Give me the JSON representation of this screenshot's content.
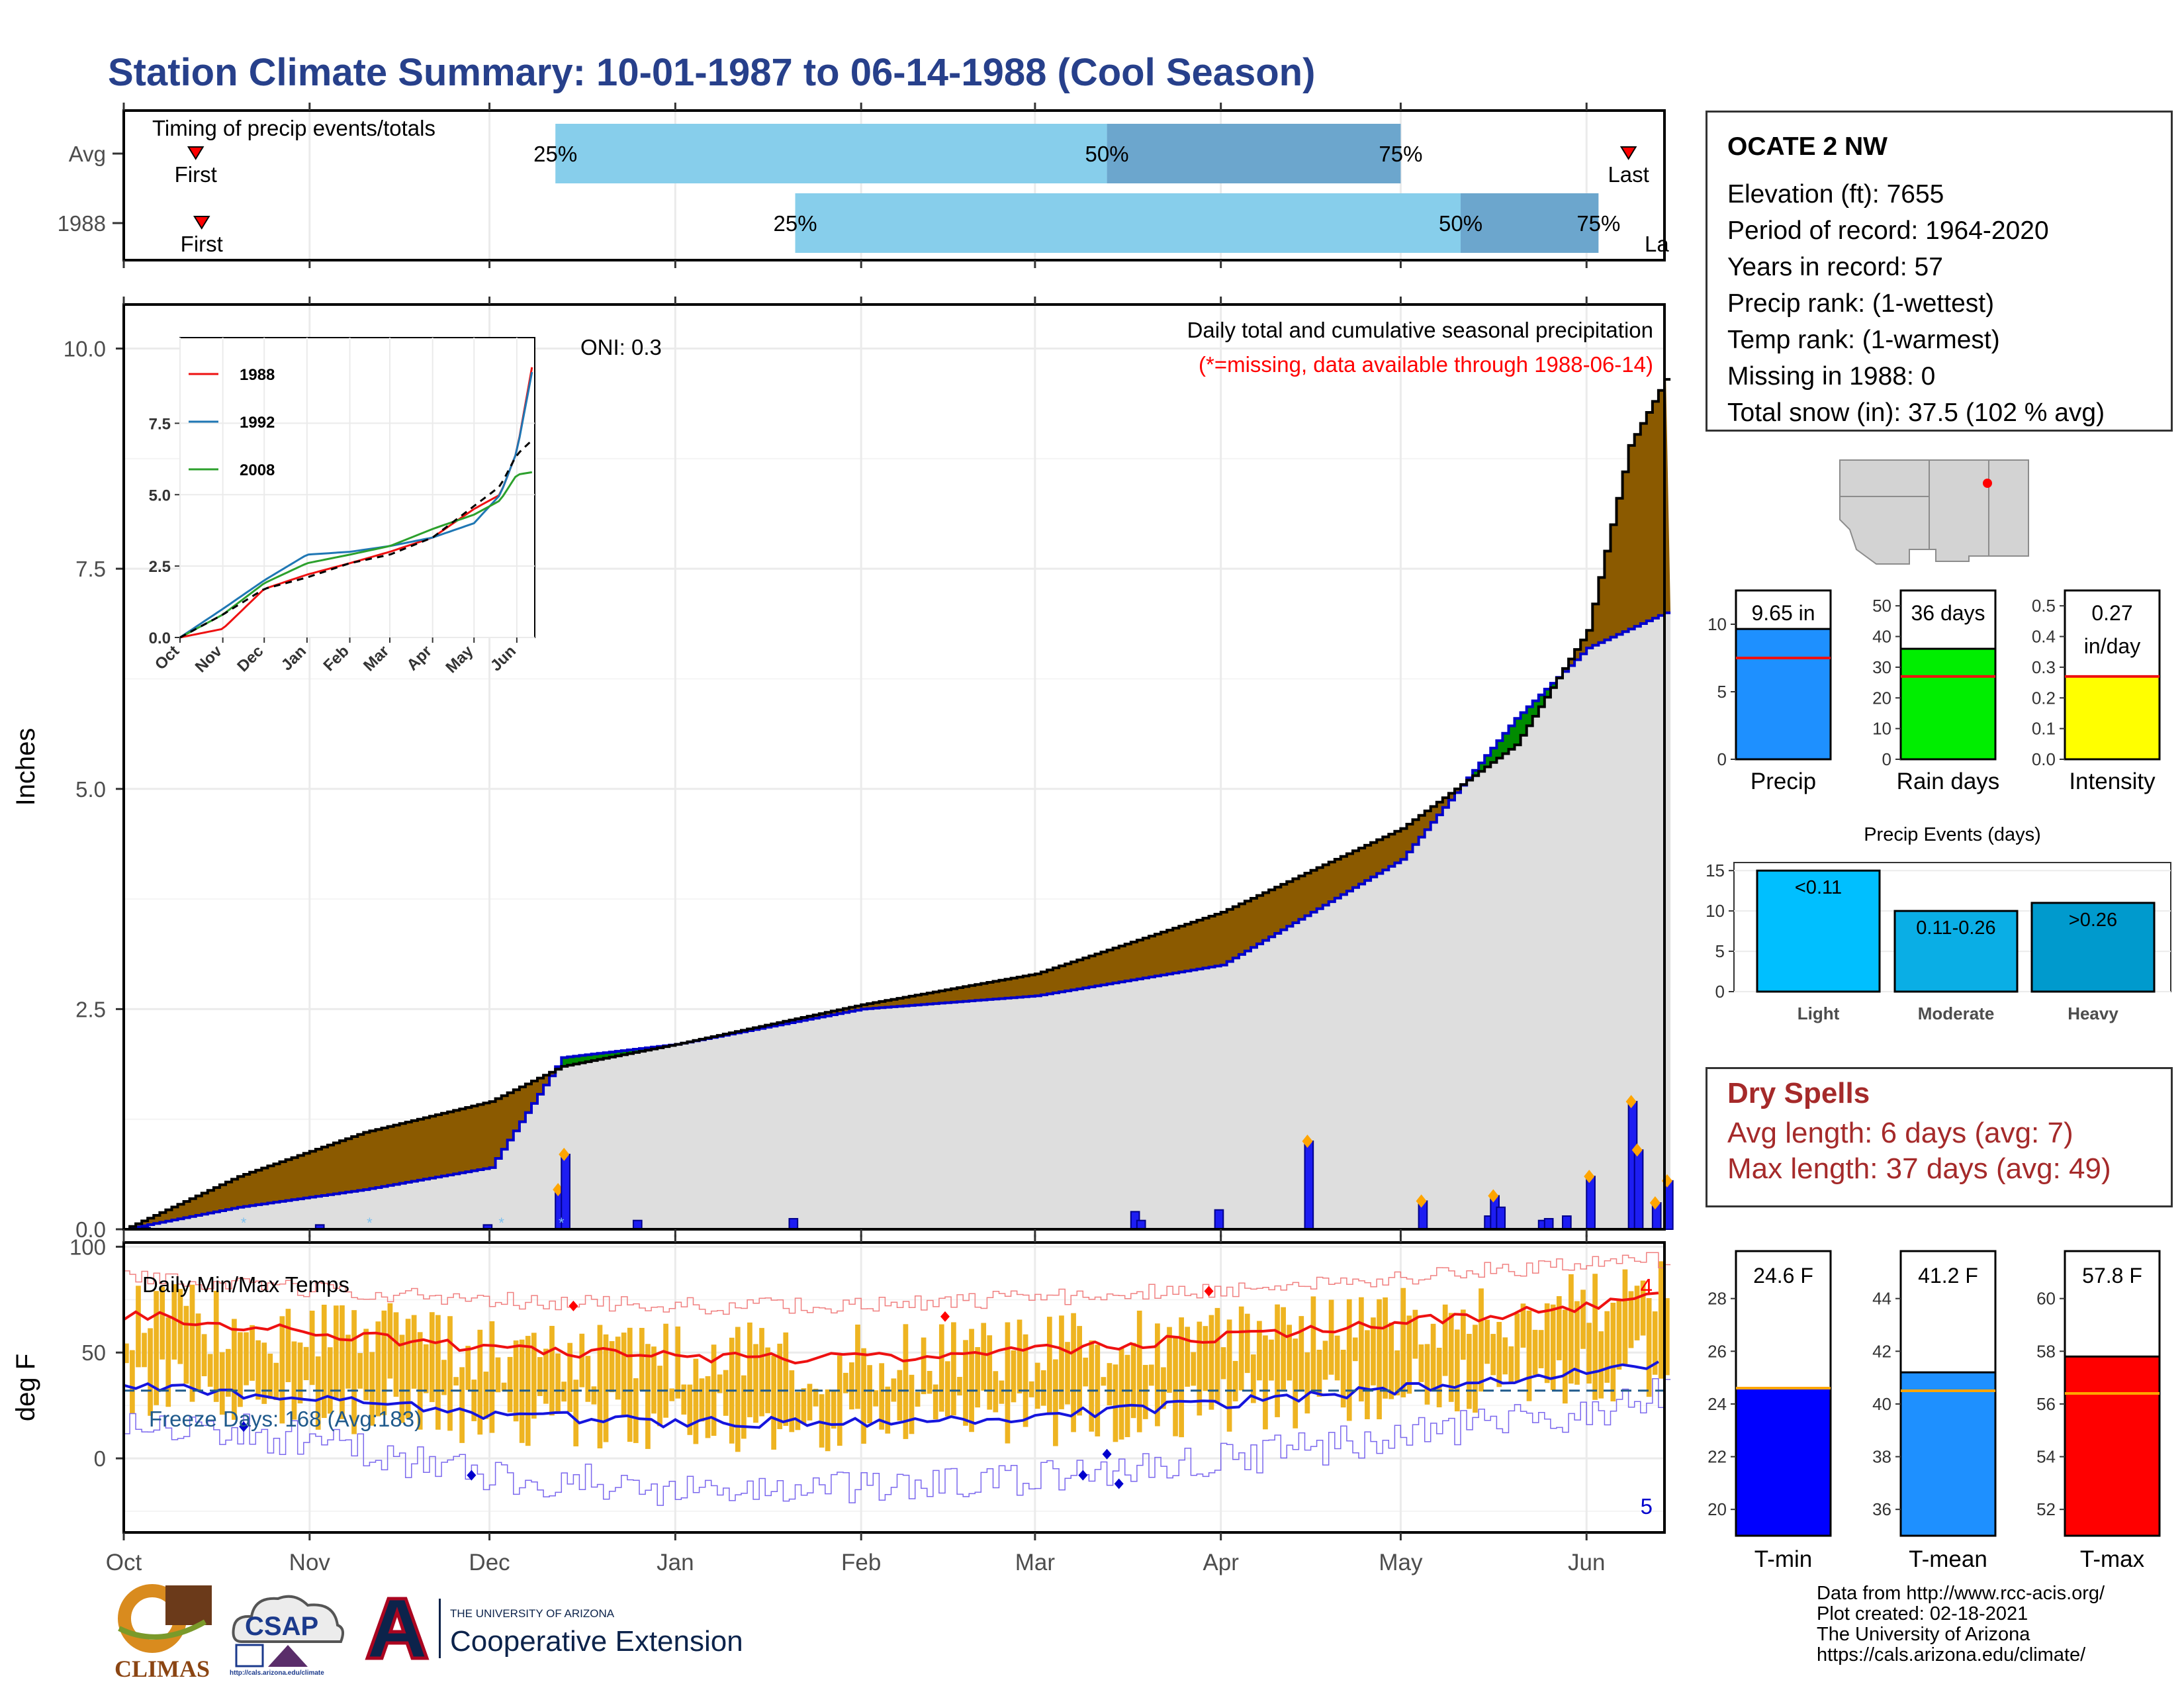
{
  "page_title": "Station Climate Summary: 10-01-1987 to 06-14-1988 (Cool Season)",
  "colors": {
    "title": "#27408b",
    "brown_surplus": "#8b5a00",
    "green_deficit": "#008b00",
    "avg_fill": "#dedede",
    "daily_bar": "#1d1df2",
    "tmax_line": "#ee1111",
    "tmin_line": "#1515dd",
    "temp_bars": "#eeb421",
    "dry_spell_text": "#a52a2a",
    "timing_light": "#87ceeb",
    "timing_dark": "#6ca6cd"
  },
  "timing": {
    "label": "Timing of precip events/totals",
    "rows": [
      {
        "name": "Avg",
        "first_marker": "First",
        "last_marker": "Last",
        "p25": "25%",
        "p50": "50%",
        "p75": "75%",
        "first_date": "1987-10-13",
        "last_date": "1988-06-08",
        "p25_date": "1987-12-12",
        "p50_date": "1988-03-13",
        "p75_date": "1988-05-01"
      },
      {
        "name": "1988",
        "first_marker": "First",
        "last_marker": "La",
        "p25": "25%",
        "p50": "50%",
        "p75": "75%",
        "first_date": "1987-10-14",
        "p25_date": "1988-01-21",
        "p50_date": "1988-05-11",
        "p75_date": "1988-06-03"
      }
    ]
  },
  "precip_panel": {
    "ylabel": "Inches",
    "yticks": [
      "0.0",
      "2.5",
      "5.0",
      "7.5",
      "10.0"
    ],
    "oni": "ONI: 0.3",
    "caption1": "Daily total and cumulative seasonal precipitation",
    "caption2": "(*=missing, data available through 1988-06-14)"
  },
  "inset": {
    "legend": [
      "1988",
      "1992",
      "2008"
    ],
    "yticks": [
      "0.0",
      "2.5",
      "5.0",
      "7.5"
    ],
    "months": [
      "Oct",
      "Nov",
      "Dec",
      "Jan",
      "Feb",
      "Mar",
      "Apr",
      "May",
      "Jun"
    ]
  },
  "temp_panel": {
    "ylabel": "deg F",
    "yticks": [
      "0",
      "50",
      "100"
    ],
    "title": "Daily Min/Max Temps",
    "freeze_text": "Freeze Days: 168 (Avg:183)",
    "count_max": "4",
    "count_min": "5"
  },
  "months": [
    "Oct",
    "Nov",
    "Dec",
    "Jan",
    "Feb",
    "Mar",
    "Apr",
    "May",
    "Jun"
  ],
  "station": {
    "name": "OCATE 2 NW",
    "lines": [
      "Elevation (ft): 7655",
      "Period of record: 1964-2020",
      "Years in record: 57",
      "Precip rank:  (1-wettest)",
      "Temp rank:  (1-warmest)",
      "Missing in 1988: 0",
      "Total snow (in): 37.5 (102 % avg)"
    ]
  },
  "mini_precip": [
    {
      "label": "9.65 in",
      "xlabel": "Precip",
      "value": 9.65,
      "avg": 7.5,
      "ymax": 12.5,
      "yticks": [
        "0",
        "5",
        "10"
      ],
      "tickvals": [
        0,
        5,
        10
      ],
      "color": "#1e90ff"
    },
    {
      "label": "36 days",
      "xlabel": "Rain days",
      "value": 36,
      "avg": 27,
      "ymax": 55,
      "yticks": [
        "0",
        "10",
        "20",
        "30",
        "40",
        "50"
      ],
      "tickvals": [
        0,
        10,
        20,
        30,
        40,
        50
      ],
      "color": "#00ee00"
    },
    {
      "label": "0.27",
      "label2": "in/day",
      "xlabel": "Intensity",
      "value": 0.27,
      "avg": 0.27,
      "ymax": 0.55,
      "yticks": [
        "0.0",
        "0.1",
        "0.2",
        "0.3",
        "0.4",
        "0.5"
      ],
      "tickvals": [
        0,
        0.1,
        0.2,
        0.3,
        0.4,
        0.5
      ],
      "color": "#ffff00"
    }
  ],
  "events": {
    "title": "Precip Events (days)",
    "yticks": [
      "0",
      "5",
      "10",
      "15"
    ],
    "bars": [
      {
        "label": "<0.11",
        "xlabel": "Light",
        "value": 15,
        "color": "#00bfff"
      },
      {
        "label": "0.11-0.26",
        "xlabel": "Moderate",
        "value": 10,
        "color": "#0aaee5"
      },
      {
        "label": ">0.26",
        "xlabel": "Heavy",
        "value": 11,
        "color": "#009acd"
      }
    ]
  },
  "dry_spells": {
    "title": "Dry Spells",
    "line1": "Avg length: 6 days (avg: 7)",
    "line2": "Max length: 37 days (avg: 49)"
  },
  "mini_temp": [
    {
      "label": "24.6 F",
      "xlabel": "T-min",
      "value": 24.6,
      "avg": 24.6,
      "ymin": 19,
      "ymax": 29.8,
      "yticks": [
        "20",
        "22",
        "24",
        "26",
        "28"
      ],
      "tickvals": [
        20,
        22,
        24,
        26,
        28
      ],
      "color": "#0000ff"
    },
    {
      "label": "41.2 F",
      "xlabel": "T-mean",
      "value": 41.2,
      "avg": 40.5,
      "ymin": 35,
      "ymax": 45.8,
      "yticks": [
        "36",
        "38",
        "40",
        "42",
        "44"
      ],
      "tickvals": [
        36,
        38,
        40,
        42,
        44
      ],
      "color": "#1e90ff"
    },
    {
      "label": "57.8 F",
      "xlabel": "T-max",
      "value": 57.8,
      "avg": 56.4,
      "ymin": 51,
      "ymax": 61.8,
      "yticks": [
        "52",
        "54",
        "56",
        "58",
        "60"
      ],
      "tickvals": [
        52,
        54,
        56,
        58,
        60
      ],
      "color": "#ff0000"
    }
  ],
  "credits": [
    "Data from http://www.rcc-acis.org/",
    "Plot created: 02-18-2021",
    "The University of Arizona",
    "https://cals.arizona.edu/climate/"
  ],
  "logos": {
    "climas": "CLIMAS",
    "csap": "CSAP",
    "csap_url": "http://cals.arizona.edu/climate",
    "ua_small": "THE UNIVERSITY OF ARIZONA",
    "ua_big": "Cooperative Extension"
  },
  "chart_data": [
    {
      "type": "line",
      "title": "Daily total and cumulative seasonal precipitation",
      "ylabel": "Inches",
      "ylim": [
        0,
        10.5
      ],
      "x_range": [
        "1987-10-01",
        "1988-06-14"
      ],
      "series": [
        {
          "name": "1988",
          "x": [
            "1987-10-01",
            "1987-10-20",
            "1987-11-10",
            "1987-12-01",
            "1987-12-13",
            "1988-01-01",
            "1988-02-01",
            "1988-03-01",
            "1988-04-01",
            "1988-05-01",
            "1988-05-20",
            "1988-06-01",
            "1988-06-08",
            "1988-06-14"
          ],
          "y": [
            0,
            0.6,
            1.1,
            1.45,
            1.85,
            2.1,
            2.55,
            2.9,
            3.6,
            4.55,
            5.5,
            6.8,
            8.9,
            9.65
          ]
        },
        {
          "x": [
            "1987-10-01",
            "1987-10-20",
            "1987-11-10",
            "1987-12-01",
            "1987-12-13",
            "1988-01-01",
            "1988-02-01",
            "1988-03-01",
            "1988-04-01",
            "1988-05-01",
            "1988-05-20",
            "1988-06-01",
            "1988-06-14"
          ],
          "y": [
            0,
            0.25,
            0.45,
            0.7,
            1.95,
            2.1,
            2.5,
            2.65,
            3.0,
            4.2,
            5.8,
            6.6,
            7.0
          ]
        }
      ],
      "daily_precip": [
        {
          "date": "1987-10-04",
          "value": 0.02
        },
        {
          "date": "1987-11-02",
          "value": 0.05
        },
        {
          "date": "1987-11-30",
          "value": 0.05
        },
        {
          "date": "1987-12-12",
          "value": 0.45
        },
        {
          "date": "1987-12-13",
          "value": 0.85
        },
        {
          "date": "1987-12-25",
          "value": 0.1
        },
        {
          "date": "1988-01-20",
          "value": 0.12
        },
        {
          "date": "1988-03-17",
          "value": 0.2
        },
        {
          "date": "1988-03-18",
          "value": 0.1
        },
        {
          "date": "1988-03-31",
          "value": 0.22
        },
        {
          "date": "1988-04-15",
          "value": 1.0
        },
        {
          "date": "1988-05-04",
          "value": 0.32
        },
        {
          "date": "1988-05-15",
          "value": 0.15
        },
        {
          "date": "1988-05-16",
          "value": 0.38
        },
        {
          "date": "1988-05-17",
          "value": 0.25
        },
        {
          "date": "1988-05-24",
          "value": 0.1
        },
        {
          "date": "1988-05-25",
          "value": 0.12
        },
        {
          "date": "1988-05-28",
          "value": 0.15
        },
        {
          "date": "1988-06-01",
          "value": 0.6
        },
        {
          "date": "1988-06-08",
          "value": 1.45
        },
        {
          "date": "1988-06-09",
          "value": 0.9
        },
        {
          "date": "1988-06-12",
          "value": 0.3
        },
        {
          "date": "1988-06-14",
          "value": 0.55
        }
      ]
    },
    {
      "type": "line",
      "ylim": [
        0,
        10.5
      ],
      "x_range": [
        "1987-10-01",
        "1988-06-14"
      ],
      "series": [
        {
          "name": "1988",
          "x": [
            "1987-10-01",
            "1987-11-01",
            "1987-12-01",
            "1988-01-01",
            "1988-02-01",
            "1988-03-01",
            "1988-04-01",
            "1988-05-01",
            "1988-05-20",
            "1988-06-01",
            "1988-06-14"
          ],
          "y": [
            0,
            0.3,
            1.7,
            2.2,
            2.6,
            3.0,
            3.5,
            4.5,
            5.0,
            6.5,
            10.0
          ]
        },
        {
          "name": "1992",
          "x": [
            "1987-10-01",
            "1987-11-01",
            "1987-12-01",
            "1988-01-01",
            "1988-02-01",
            "1988-03-01",
            "1988-04-01",
            "1988-05-01",
            "1988-05-20",
            "1988-06-01",
            "1988-06-14"
          ],
          "y": [
            0,
            1.0,
            2.0,
            2.9,
            3.0,
            3.2,
            3.5,
            4.0,
            5.0,
            6.5,
            9.8
          ]
        },
        {
          "name": "2008",
          "x": [
            "1987-10-01",
            "1987-11-01",
            "1987-12-01",
            "1988-01-01",
            "1988-02-01",
            "1988-03-01",
            "1988-04-01",
            "1988-05-01",
            "1988-05-20",
            "1988-06-01",
            "1988-06-14"
          ],
          "y": [
            0,
            0.8,
            1.9,
            2.6,
            2.9,
            3.2,
            3.8,
            4.3,
            4.8,
            5.7,
            5.8
          ]
        },
        {
          "x": [
            "1987-10-01",
            "1987-11-01",
            "1987-12-01",
            "1988-01-01",
            "1988-02-01",
            "1988-03-01",
            "1988-04-01",
            "1988-05-01",
            "1988-05-20",
            "1988-06-01",
            "1988-06-14"
          ],
          "y": [
            0,
            0.8,
            1.7,
            2.1,
            2.6,
            2.9,
            3.5,
            4.6,
            5.3,
            6.4,
            7.0
          ]
        }
      ]
    },
    {
      "type": "line",
      "title": "Daily Min/Max Temps",
      "ylabel": "deg F",
      "ylim": [
        -35,
        102
      ],
      "x_range": [
        "1987-10-01",
        "1988-06-14"
      ],
      "series": [
        {
          "x": [
            "1987-10-01",
            "1987-11-01",
            "1987-12-01",
            "1988-01-01",
            "1988-02-01",
            "1988-03-01",
            "1988-04-01",
            "1988-05-01",
            "1988-06-01",
            "1988-06-14"
          ],
          "y": [
            68,
            60,
            52,
            48,
            47,
            51,
            57,
            64,
            72,
            77
          ]
        },
        {
          "x": [
            "1987-10-01",
            "1987-11-01",
            "1987-12-01",
            "1988-01-01",
            "1988-02-01",
            "1988-03-01",
            "1988-04-01",
            "1988-05-01",
            "1988-06-01",
            "1988-06-14"
          ],
          "y": [
            35,
            28,
            21,
            17,
            17,
            20,
            26,
            33,
            41,
            44
          ]
        },
        {
          "x": [
            "1987-10-01",
            "1987-11-01",
            "1987-12-01",
            "1988-01-01",
            "1988-02-01",
            "1988-03-01",
            "1988-04-01",
            "1988-05-01",
            "1988-06-01",
            "1988-06-14"
          ],
          "y": [
            85,
            80,
            75,
            72,
            72,
            76,
            80,
            86,
            92,
            94
          ]
        },
        {
          "x": [
            "1987-10-01",
            "1987-11-01",
            "1987-12-01",
            "1988-01-01",
            "1988-02-01",
            "1988-03-01",
            "1988-04-01",
            "1988-05-01",
            "1988-06-01",
            "1988-06-14"
          ],
          "y": [
            20,
            8,
            -8,
            -15,
            -15,
            -10,
            0,
            10,
            22,
            30
          ]
        }
      ],
      "freeze_threshold": 32
    }
  ]
}
